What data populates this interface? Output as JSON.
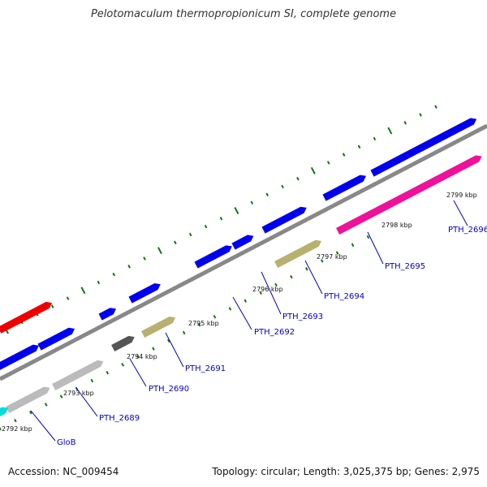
{
  "title": "Pelotomaculum thermopropionicum SI, complete genome",
  "footer": {
    "accession": "Accession: NC_009454",
    "summary": "Topology: circular; Length: 3,025,375 bp; Genes: 2,975"
  },
  "colors": {
    "backbone": "#888888",
    "tick": "#117711",
    "blue": "#0000ee",
    "red": "#ee0000",
    "magenta": "#ee1199",
    "grey": "#bbbbbb",
    "dark": "#555555",
    "khaki": "#b8b070",
    "cyan": "#00dddd",
    "label": "#0000cc"
  },
  "kbp_labels": [
    "2792 kbp",
    "2793 kbp",
    "2794 kbp",
    "2795 kbp",
    "2796 kbp",
    "2797 kbp",
    "2798 kbp",
    "2799 kbp"
  ],
  "gene_labels": [
    "GloB",
    "PTH_2689",
    "PTH_2690",
    "PTH_2691",
    "PTH_2692",
    "PTH_2693",
    "PTH_2694",
    "PTH_2695",
    "PTH_2696"
  ]
}
